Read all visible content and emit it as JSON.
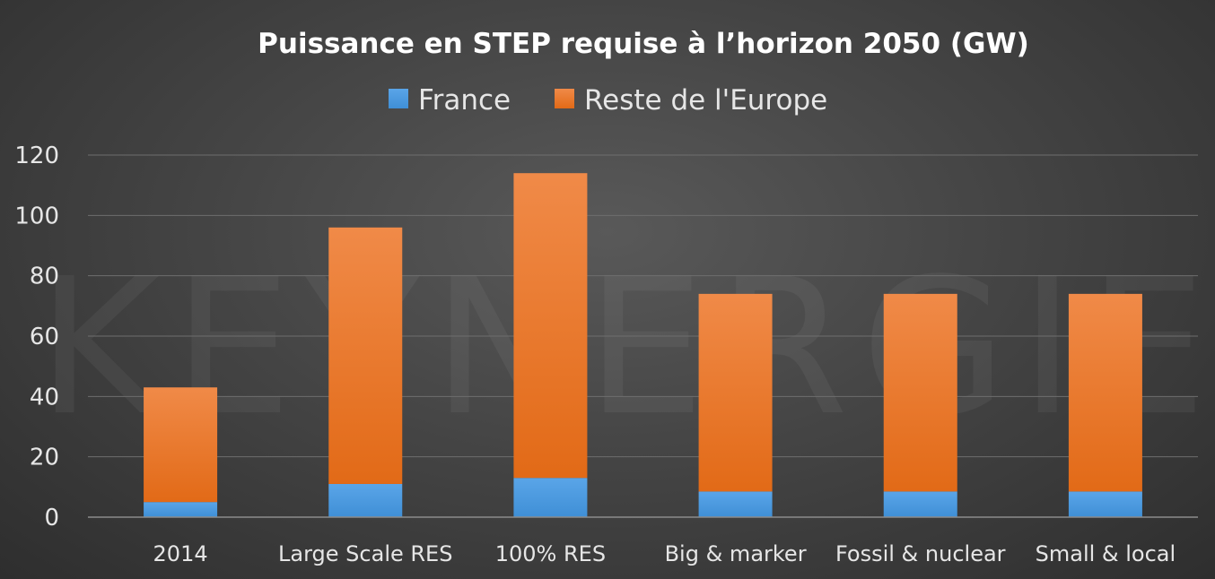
{
  "watermark": "KEYNERGIE",
  "chart_data": {
    "type": "bar",
    "stacked": true,
    "title": "Puissance en STEP requise à l’horizon 2050 (GW)",
    "categories": [
      "2014",
      "Large Scale RES",
      "100% RES",
      "Big & marker",
      "Fossil & nuclear",
      "Small & local"
    ],
    "series": [
      {
        "name": "France",
        "values": [
          5,
          11,
          13,
          8.5,
          8.5,
          8.5
        ],
        "color": "#4f9be0"
      },
      {
        "name": "Reste de l'Europe",
        "values": [
          38,
          85,
          101,
          65.5,
          65.5,
          65.5
        ],
        "color": "#e8711e"
      }
    ],
    "yticks": [
      "0",
      "20",
      "40",
      "60",
      "80",
      "100",
      "120"
    ],
    "ylim": [
      0,
      120
    ],
    "grid": true,
    "legend_position": "top"
  }
}
